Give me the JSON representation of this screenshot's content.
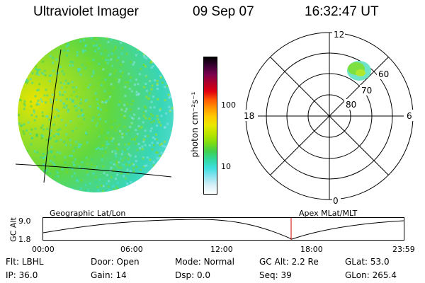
{
  "header": {
    "title": "Ultraviolet Imager",
    "date": "09 Sep 07",
    "time": "16:32:47 UT"
  },
  "colorbar": {
    "unit_label": "photon cm⁻²s⁻¹",
    "ticks": [
      "100",
      "10"
    ],
    "colors": [
      "#000000",
      "#3b0033",
      "#7a004f",
      "#b0002a",
      "#e00010",
      "#ff5a00",
      "#ff9a00",
      "#ffcc00",
      "#e8e800",
      "#b8e400",
      "#80dd10",
      "#40d050",
      "#30d8a0",
      "#40e0e0",
      "#90e4f0",
      "#d8f0f8",
      "#ffffff"
    ]
  },
  "polar": {
    "hour_labels": [
      "12",
      "18",
      "6",
      "0"
    ],
    "lat_labels": [
      "60",
      "70",
      "80"
    ]
  },
  "timeline": {
    "left_label": "Geographic Lat/Lon",
    "right_label": "Apex MLat/MLT",
    "y_axis_label": "GC Alt",
    "y_ticks": [
      "9.0",
      "1.8"
    ],
    "x_ticks": [
      "00:00",
      "06:00",
      "12:00",
      "18:00",
      "23:59"
    ],
    "marker_color": "#cc0000"
  },
  "info": [
    [
      {
        "k": "Flt:",
        "v": "LBHL"
      },
      {
        "k": "Door:",
        "v": "Open"
      },
      {
        "k": "Mode:",
        "v": "Normal"
      },
      {
        "k": "GC Alt:",
        "v": "2.2 Re"
      },
      {
        "k": "GLat:",
        "v": "53.0"
      }
    ],
    [
      {
        "k": "IP:",
        "v": "36.0"
      },
      {
        "k": "Gain:",
        "v": "14"
      },
      {
        "k": "Dsp:",
        "v": "0.0"
      },
      {
        "k": "Seq:",
        "v": "39"
      },
      {
        "k": "GLon:",
        "v": "265.4"
      }
    ]
  ]
}
